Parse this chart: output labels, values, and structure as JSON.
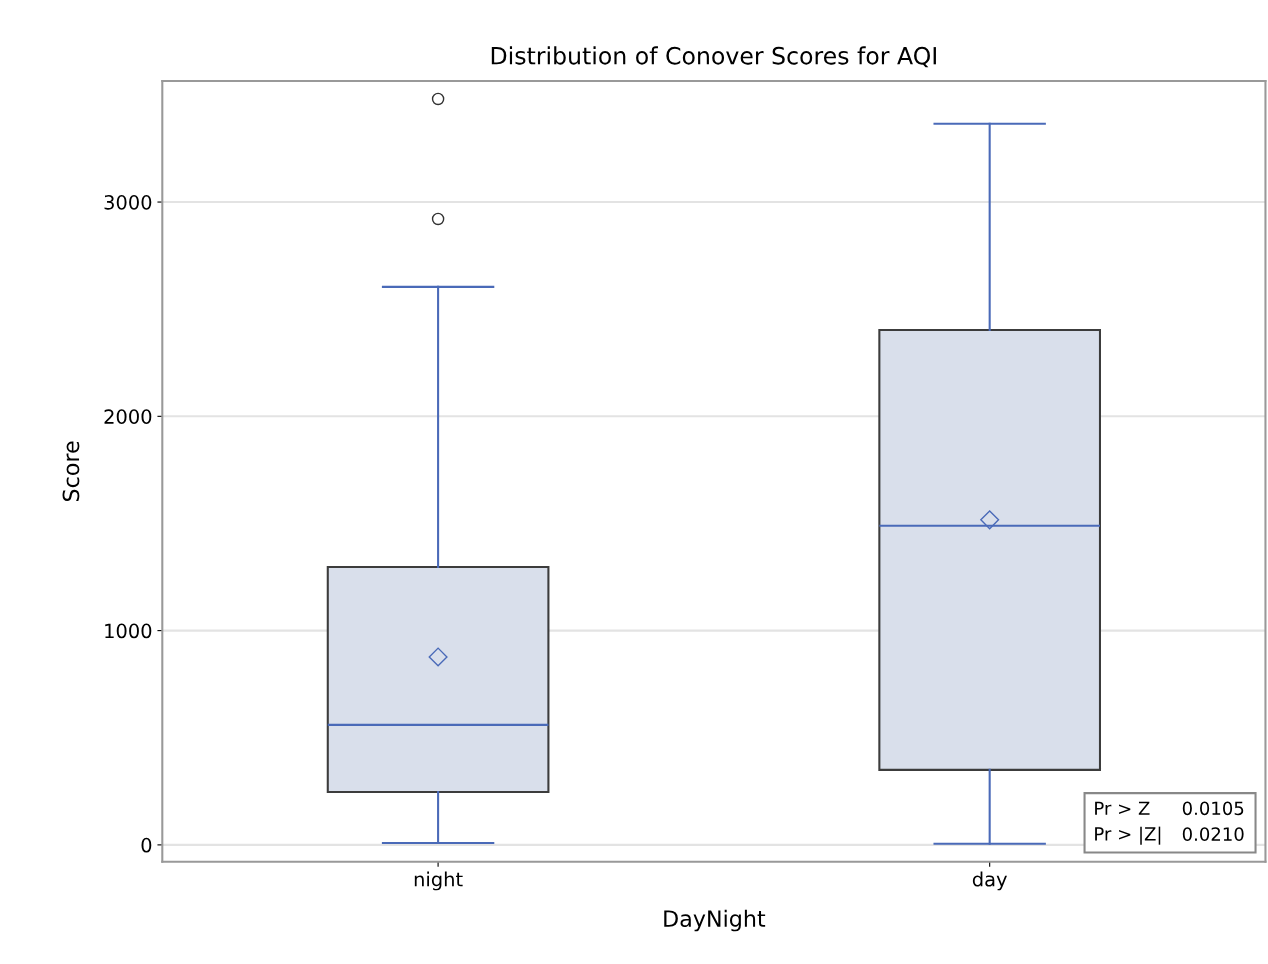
{
  "chart_data": {
    "type": "box",
    "title": "Distribution of Conover Scores for AQI",
    "xlabel": "DayNight",
    "ylabel": "Score",
    "categories": [
      "night",
      "day"
    ],
    "boxes": [
      {
        "low": 9,
        "q1": 247,
        "median": 560,
        "q3": 1297,
        "high": 2604,
        "mean": 877,
        "outliers": [
          2921,
          3481
        ]
      },
      {
        "low": 5,
        "q1": 350,
        "median": 1489,
        "q3": 2403,
        "high": 3365,
        "mean": 1517
      }
    ],
    "color": "#d9dfeb",
    "ylim": [
      -79,
      3565
    ],
    "yticks": [
      0,
      1000,
      2000,
      3000
    ],
    "grid": "y",
    "annotations": [
      "Pr > Z",
      "0.0105",
      "Pr > |Z|",
      "0.0210"
    ]
  }
}
